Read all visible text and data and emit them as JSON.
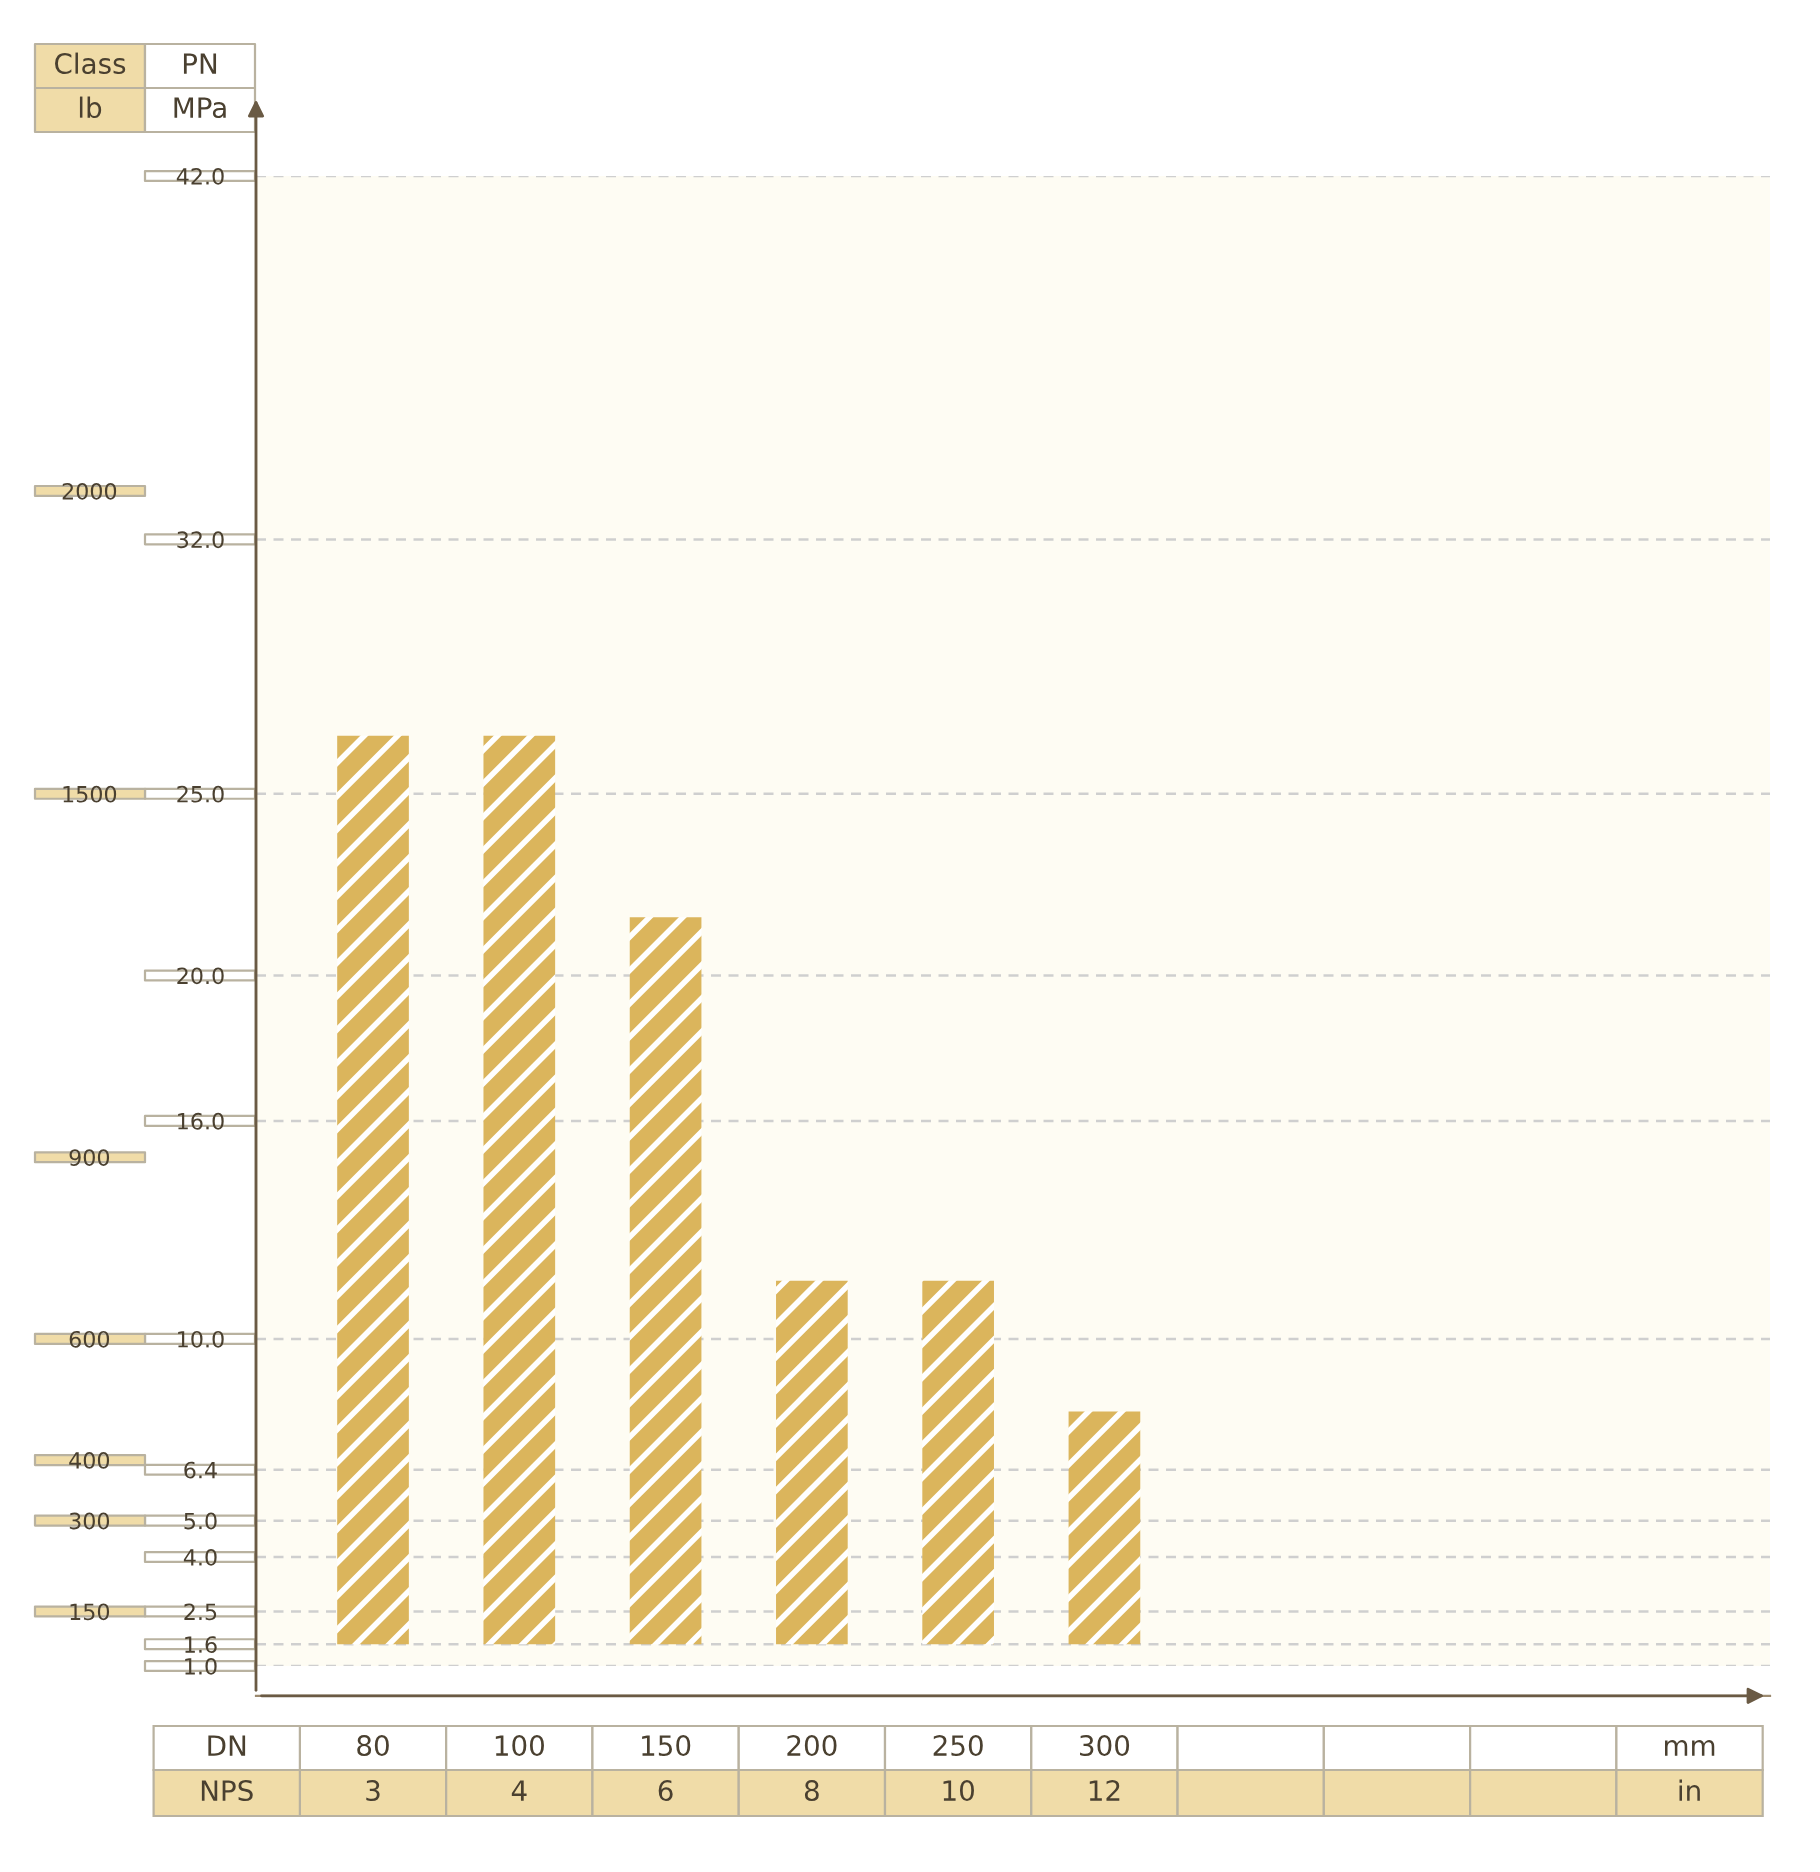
{
  "chart_data": {
    "type": "bar",
    "categories": [
      "80\n3",
      "100\n4",
      "150\n6",
      "200\n8",
      "250\n10",
      "300\n12",
      null,
      null,
      null
    ],
    "values": [
      25.0,
      25.0,
      20.0,
      10.0,
      10.0,
      6.4,
      null,
      null,
      null
    ],
    "base": [
      1.6,
      1.6,
      1.6,
      1.6,
      1.6,
      1.6,
      null,
      null,
      null
    ],
    "color": "#dbb55c",
    "xlabel": "DN\nNPS",
    "ylabel": "PN\nMPa",
    "y2label": "Class\nlb",
    "annotations": [
      "mm\nin"
    ],
    "y2lim": [
      60,
      2520
    ],
    "y2ticks": [
      150,
      300,
      400,
      600,
      900,
      1500,
      2000
    ],
    "ylim": [
      1.0,
      42.0
    ],
    "yticks": [
      {
        "value": 1.0,
        "label": "1.0"
      },
      {
        "value": 1.6,
        "label": "1.6"
      },
      {
        "value": 2.5,
        "label": "2.5"
      },
      {
        "value": 4.0,
        "label": "4.0"
      },
      {
        "value": 5.0,
        "label": "5.0"
      },
      {
        "value": 6.4,
        "label": "6.4"
      },
      {
        "value": 10.0,
        "label": "10.0"
      },
      {
        "value": 16.0,
        "label": "16.0"
      },
      {
        "value": 20.0,
        "label": "20.0"
      },
      {
        "value": 25.0,
        "label": "25.0"
      },
      {
        "value": 32.0,
        "label": "32.0"
      },
      {
        "value": 42.0,
        "label": "42.0"
      }
    ],
    "grid": "y"
  }
}
